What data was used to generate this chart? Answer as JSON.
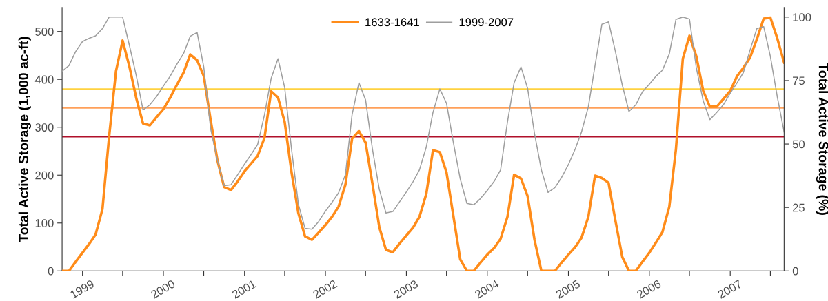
{
  "chart_data": {
    "type": "line",
    "ylabel": "Total Active Storage (1,000 ac-ft)",
    "y2label": "Total Active Storage (%)",
    "x": [
      "1998-10-01",
      "1998-11-01",
      "1998-12-01",
      "1999-01-01",
      "1999-02-01",
      "1999-03-01",
      "1999-04-01",
      "1999-05-01",
      "1999-06-01",
      "1999-07-01",
      "1999-08-01",
      "1999-09-01",
      "1999-10-01",
      "1999-11-01",
      "1999-12-01",
      "2000-01-01",
      "2000-02-01",
      "2000-03-01",
      "2000-04-01",
      "2000-05-01",
      "2000-06-01",
      "2000-07-01",
      "2000-08-01",
      "2000-09-01",
      "2000-10-01",
      "2000-11-01",
      "2000-12-01",
      "2001-01-01",
      "2001-02-01",
      "2001-03-01",
      "2001-04-01",
      "2001-05-01",
      "2001-06-01",
      "2001-07-01",
      "2001-08-01",
      "2001-09-01",
      "2001-10-01",
      "2001-11-01",
      "2001-12-01",
      "2002-01-01",
      "2002-02-01",
      "2002-03-01",
      "2002-04-01",
      "2002-05-01",
      "2002-06-01",
      "2002-07-01",
      "2002-08-01",
      "2002-09-01",
      "2002-10-01",
      "2002-11-01",
      "2002-12-01",
      "2003-01-01",
      "2003-02-01",
      "2003-03-01",
      "2003-04-01",
      "2003-05-01",
      "2003-06-01",
      "2003-07-01",
      "2003-08-01",
      "2003-09-01",
      "2003-10-01",
      "2003-11-01",
      "2003-12-01",
      "2004-01-01",
      "2004-02-01",
      "2004-03-01",
      "2004-04-01",
      "2004-05-01",
      "2004-06-01",
      "2004-07-01",
      "2004-08-01",
      "2004-09-01",
      "2004-10-01",
      "2004-11-01",
      "2004-12-01",
      "2005-01-01",
      "2005-02-01",
      "2005-03-01",
      "2005-04-01",
      "2005-05-01",
      "2005-06-01",
      "2005-07-01",
      "2005-08-01",
      "2005-09-01",
      "2005-10-01",
      "2005-11-01",
      "2005-12-01",
      "2006-01-01",
      "2006-02-01",
      "2006-03-01",
      "2006-04-01",
      "2006-05-01",
      "2006-06-01",
      "2006-07-01",
      "2006-08-01",
      "2006-09-01",
      "2006-10-01",
      "2006-11-01",
      "2006-12-01",
      "2007-01-01",
      "2007-02-01",
      "2007-03-01",
      "2007-04-01",
      "2007-05-01",
      "2007-06-01",
      "2007-07-01",
      "2007-08-01",
      "2007-09-01"
    ],
    "series": [
      {
        "name": "1633-1641",
        "color": "#ff8c1a",
        "values": [
          0,
          0,
          19,
          38,
          57,
          76,
          129,
          280,
          417,
          481,
          426,
          360,
          308,
          304,
          321,
          338,
          362,
          388,
          414,
          452,
          440,
          407,
          315,
          230,
          175,
          169,
          187,
          208,
          225,
          240,
          278,
          375,
          362,
          311,
          206,
          120,
          72,
          65,
          80,
          96,
          114,
          134,
          180,
          276,
          292,
          268,
          182,
          91,
          44,
          39,
          57,
          74,
          91,
          113,
          161,
          252,
          248,
          206,
          115,
          24,
          0,
          0,
          17,
          34,
          48,
          67,
          113,
          201,
          193,
          156,
          65,
          0,
          0,
          0,
          17,
          34,
          50,
          69,
          113,
          199,
          194,
          184,
          105,
          29,
          0,
          0,
          19,
          38,
          60,
          81,
          134,
          254,
          443,
          491,
          448,
          376,
          343,
          343,
          359,
          376,
          407,
          424,
          446,
          484,
          527,
          529,
          486,
          435
        ]
      },
      {
        "name": "1999-2007",
        "color": "#9e9e9e",
        "values": [
          417,
          429,
          458,
          479,
          486,
          491,
          506,
          530,
          530,
          530,
          470,
          407,
          336,
          347,
          364,
          386,
          407,
          431,
          454,
          490,
          498,
          426,
          297,
          230,
          178,
          180,
          201,
          223,
          244,
          264,
          326,
          402,
          443,
          383,
          254,
          139,
          89,
          87,
          103,
          125,
          144,
          163,
          201,
          326,
          393,
          357,
          254,
          170,
          121,
          124,
          144,
          165,
          187,
          211,
          259,
          331,
          380,
          350,
          268,
          192,
          141,
          138,
          151,
          168,
          187,
          211,
          311,
          393,
          426,
          381,
          287,
          211,
          164,
          174,
          195,
          222,
          255,
          290,
          343,
          429,
          515,
          520,
          458,
          388,
          333,
          347,
          374,
          390,
          407,
          419,
          453,
          525,
          530,
          526,
          424,
          355,
          316,
          331,
          347,
          371,
          393,
          414,
          462,
          506,
          510,
          448,
          364,
          290
        ]
      }
    ],
    "ref_lines": [
      {
        "axis": "y",
        "value": 380,
        "color": "#ffd23f"
      },
      {
        "axis": "y",
        "value": 340,
        "color": "#ffa05a"
      },
      {
        "axis": "y",
        "value": 280,
        "color": "#b0102b"
      }
    ],
    "xlim": [
      "1998-10-01",
      "2007-09-01"
    ],
    "xticks": [
      {
        "value": "1999-01-01",
        "label": "1999"
      },
      {
        "value": "1999-07-01",
        "label": null
      },
      {
        "value": "2000-01-01",
        "label": "2000"
      },
      {
        "value": "2000-07-01",
        "label": null
      },
      {
        "value": "2001-01-01",
        "label": "2001"
      },
      {
        "value": "2001-07-01",
        "label": null
      },
      {
        "value": "2002-01-01",
        "label": "2002"
      },
      {
        "value": "2002-07-01",
        "label": null
      },
      {
        "value": "2003-01-01",
        "label": "2003"
      },
      {
        "value": "2003-07-01",
        "label": null
      },
      {
        "value": "2004-01-01",
        "label": "2004"
      },
      {
        "value": "2004-07-01",
        "label": null
      },
      {
        "value": "2005-01-01",
        "label": "2005"
      },
      {
        "value": "2005-07-01",
        "label": null
      },
      {
        "value": "2006-01-01",
        "label": "2006"
      },
      {
        "value": "2006-07-01",
        "label": null
      },
      {
        "value": "2007-01-01",
        "label": "2007"
      },
      {
        "value": "2007-07-01",
        "label": null
      }
    ],
    "ylim": [
      0,
      550
    ],
    "yticks": [
      0,
      100,
      200,
      300,
      400,
      500
    ],
    "y2lim": [
      0,
      103.77
    ],
    "y2ticks": [
      0,
      25,
      50,
      75,
      100
    ],
    "grid": false,
    "legend": "top",
    "marker": "none",
    "line_style": "solid"
  }
}
